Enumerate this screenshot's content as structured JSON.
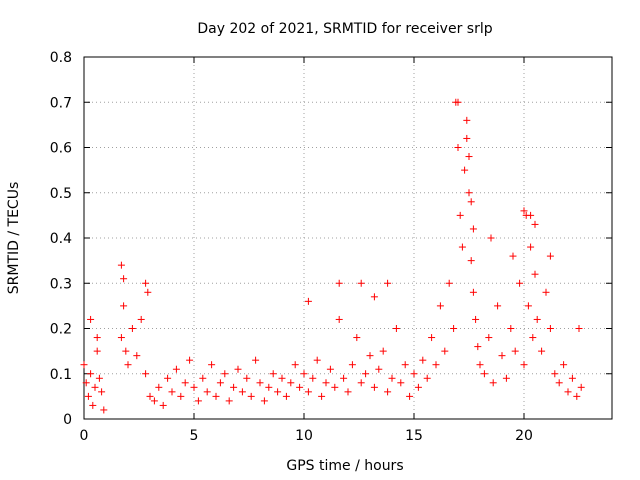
{
  "chart_data": {
    "type": "scatter",
    "title": "Day 202 of 2021, SRMTID for receiver srlp",
    "xlabel": "GPS time / hours",
    "ylabel": "SRMTID / TECUs",
    "xlim": [
      0,
      24
    ],
    "ylim": [
      0,
      0.8
    ],
    "xticks": [
      0,
      5,
      10,
      15,
      20
    ],
    "xtick_labels": [
      "0",
      "5",
      "10",
      "15",
      "20"
    ],
    "yticks": [
      0,
      0.1,
      0.2,
      0.3,
      0.4,
      0.5,
      0.6,
      0.7,
      0.8
    ],
    "ytick_labels": [
      "0",
      "0.1",
      "0.2",
      "0.3",
      "0.4",
      "0.5",
      "0.6",
      "0.7",
      "0.8"
    ],
    "grid": true,
    "marker": "+",
    "color": "#ff0000",
    "series": [
      {
        "name": "SRMTID",
        "x": [
          0.0,
          0.1,
          0.2,
          0.3,
          0.4,
          0.5,
          0.6,
          0.7,
          0.8,
          0.9,
          1.7,
          1.8,
          1.9,
          2.0,
          2.2,
          2.4,
          2.6,
          2.8,
          2.9,
          3.0,
          3.2,
          3.4,
          3.6,
          3.8,
          4.0,
          4.2,
          4.4,
          4.6,
          4.8,
          5.0,
          5.2,
          5.4,
          5.6,
          5.8,
          6.0,
          6.2,
          6.4,
          6.6,
          6.8,
          7.0,
          7.2,
          7.4,
          7.6,
          7.8,
          8.0,
          8.2,
          8.4,
          8.6,
          8.8,
          9.0,
          9.2,
          9.4,
          9.6,
          9.8,
          10.0,
          10.2,
          10.4,
          10.6,
          10.8,
          11.0,
          11.2,
          11.4,
          11.6,
          11.8,
          12.0,
          12.2,
          12.4,
          12.6,
          12.8,
          13.0,
          13.2,
          13.4,
          13.6,
          13.8,
          14.0,
          14.2,
          14.4,
          14.6,
          14.8,
          15.0,
          15.2,
          15.4,
          15.6,
          15.8,
          16.0,
          16.2,
          16.4,
          16.6,
          16.8,
          17.0,
          17.1,
          17.2,
          17.3,
          17.4,
          17.5,
          17.6,
          17.7,
          17.8,
          17.9,
          18.0,
          18.2,
          18.4,
          18.6,
          18.8,
          19.0,
          19.2,
          19.4,
          19.6,
          19.8,
          20.0,
          20.1,
          20.2,
          20.3,
          20.4,
          20.5,
          20.6,
          20.8,
          21.0,
          21.2,
          21.4,
          21.6,
          21.8,
          22.0,
          22.2,
          22.4,
          22.6,
          0.3,
          0.6,
          1.7,
          1.8,
          2.8,
          10.2,
          11.6,
          12.6,
          13.2,
          13.8,
          16.9,
          17.0,
          17.4,
          17.5,
          17.6,
          17.7,
          18.5,
          19.5,
          20.0,
          20.3,
          20.5,
          21.2,
          22.5
        ],
        "y": [
          0.12,
          0.08,
          0.05,
          0.1,
          0.03,
          0.07,
          0.15,
          0.09,
          0.06,
          0.02,
          0.18,
          0.25,
          0.15,
          0.12,
          0.2,
          0.14,
          0.22,
          0.1,
          0.28,
          0.05,
          0.04,
          0.07,
          0.03,
          0.09,
          0.06,
          0.11,
          0.05,
          0.08,
          0.13,
          0.07,
          0.04,
          0.09,
          0.06,
          0.12,
          0.05,
          0.08,
          0.1,
          0.04,
          0.07,
          0.11,
          0.06,
          0.09,
          0.05,
          0.13,
          0.08,
          0.04,
          0.07,
          0.1,
          0.06,
          0.09,
          0.05,
          0.08,
          0.12,
          0.07,
          0.1,
          0.06,
          0.09,
          0.13,
          0.05,
          0.08,
          0.11,
          0.07,
          0.22,
          0.09,
          0.06,
          0.12,
          0.18,
          0.08,
          0.1,
          0.14,
          0.07,
          0.11,
          0.15,
          0.06,
          0.09,
          0.2,
          0.08,
          0.12,
          0.05,
          0.1,
          0.07,
          0.13,
          0.09,
          0.18,
          0.12,
          0.25,
          0.15,
          0.3,
          0.2,
          0.6,
          0.45,
          0.38,
          0.55,
          0.62,
          0.5,
          0.35,
          0.28,
          0.22,
          0.16,
          0.12,
          0.1,
          0.18,
          0.08,
          0.25,
          0.14,
          0.09,
          0.2,
          0.15,
          0.3,
          0.12,
          0.45,
          0.25,
          0.38,
          0.18,
          0.32,
          0.22,
          0.15,
          0.28,
          0.2,
          0.1,
          0.08,
          0.12,
          0.06,
          0.09,
          0.05,
          0.07,
          0.22,
          0.18,
          0.34,
          0.31,
          0.3,
          0.26,
          0.3,
          0.3,
          0.27,
          0.3,
          0.7,
          0.7,
          0.66,
          0.58,
          0.48,
          0.42,
          0.4,
          0.36,
          0.46,
          0.45,
          0.43,
          0.36,
          0.2
        ]
      }
    ]
  }
}
